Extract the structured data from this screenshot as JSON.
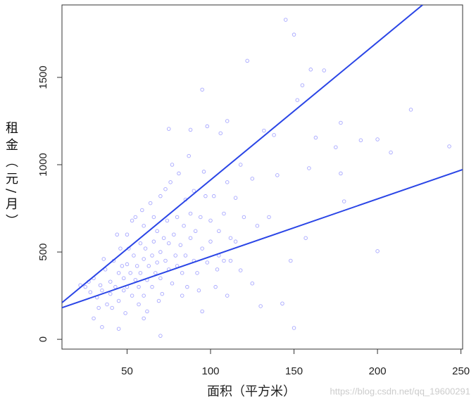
{
  "chart_data": {
    "type": "scatter",
    "x_label": "面积（平方米）",
    "y_label": "租金（元/月）",
    "watermark": "https://blog.csdn.net/qq_19600291",
    "xlim": [
      11,
      251
    ],
    "ylim": [
      -56,
      1915
    ],
    "xticks": [
      50,
      100,
      150,
      200,
      250
    ],
    "yticks": [
      0,
      500,
      1000,
      1500
    ],
    "point_color": "rgba(60,60,255,0.45)",
    "x": [
      145,
      150,
      122,
      160,
      168,
      155,
      220,
      95,
      152,
      163,
      178,
      190,
      200,
      208,
      243,
      175,
      159,
      178,
      200,
      157,
      148,
      150,
      143,
      130,
      180,
      132,
      138,
      118,
      125,
      140,
      135,
      128,
      110,
      106,
      98,
      88,
      75,
      115,
      120,
      112,
      105,
      118,
      125,
      110,
      95,
      70,
      60,
      45,
      35,
      30,
      25,
      28,
      30,
      32,
      34,
      35,
      37,
      38,
      40,
      40,
      42,
      43,
      45,
      45,
      46,
      48,
      48,
      50,
      50,
      50,
      52,
      53,
      54,
      55,
      55,
      56,
      57,
      58,
      58,
      60,
      60,
      60,
      61,
      62,
      63,
      64,
      65,
      65,
      66,
      67,
      68,
      68,
      70,
      70,
      70,
      71,
      72,
      73,
      74,
      75,
      75,
      76,
      77,
      78,
      79,
      80,
      80,
      81,
      82,
      83,
      84,
      85,
      85,
      86,
      88,
      88,
      90,
      90,
      91,
      92,
      94,
      95,
      96,
      98,
      100,
      100,
      102,
      104,
      105,
      108,
      110,
      112,
      115,
      22,
      27,
      33,
      36,
      41,
      44,
      47,
      49,
      51,
      53,
      57,
      59,
      62,
      66,
      69,
      73,
      77,
      83,
      87,
      93,
      97,
      103,
      108
    ],
    "y": [
      1830,
      1745,
      1595,
      1545,
      1540,
      1455,
      1315,
      1430,
      1370,
      1155,
      1240,
      1140,
      1145,
      1070,
      1105,
      1100,
      980,
      950,
      505,
      580,
      450,
      65,
      205,
      190,
      790,
      1195,
      1170,
      1000,
      920,
      940,
      700,
      650,
      1250,
      1180,
      1220,
      1200,
      1205,
      810,
      700,
      580,
      480,
      395,
      320,
      250,
      160,
      20,
      120,
      60,
      70,
      120,
      300,
      270,
      350,
      240,
      310,
      280,
      400,
      200,
      330,
      260,
      450,
      300,
      380,
      220,
      520,
      350,
      280,
      430,
      300,
      600,
      380,
      250,
      480,
      340,
      700,
      420,
      300,
      550,
      380,
      460,
      250,
      650,
      520,
      340,
      420,
      780,
      480,
      300,
      560,
      380,
      620,
      440,
      500,
      350,
      820,
      260,
      580,
      450,
      680,
      400,
      550,
      900,
      320,
      600,
      480,
      700,
      420,
      950,
      540,
      380,
      650,
      480,
      800,
      300,
      580,
      720,
      450,
      850,
      620,
      380,
      700,
      520,
      960,
      440,
      680,
      560,
      820,
      400,
      620,
      720,
      900,
      450,
      560,
      310,
      330,
      180,
      460,
      180,
      600,
      420,
      150,
      520,
      680,
      200,
      740,
      160,
      700,
      220,
      860,
      1000,
      250,
      1050,
      280,
      820,
      300,
      450
    ],
    "lines": [
      {
        "color": "#2a45e6",
        "x": [
          11,
          227
        ],
        "y": [
          210,
          1915
        ]
      },
      {
        "color": "#2a45e6",
        "x": [
          11,
          251
        ],
        "y": [
          181,
          972
        ]
      }
    ]
  }
}
